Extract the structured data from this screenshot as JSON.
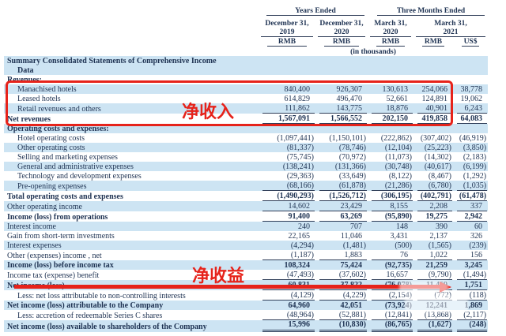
{
  "table": {
    "col_groups": [
      {
        "label": "Years Ended",
        "span": 2
      },
      {
        "label": "Three Months Ended",
        "span": 3
      }
    ],
    "col_dates": [
      "December 31, 2019",
      "December 31, 2020",
      "March 31, 2020",
      "March 31, 2021"
    ],
    "col_currencies": [
      "RMB",
      "RMB",
      "RMB",
      "RMB",
      "US$"
    ],
    "units_note": "(in thousands)",
    "rows": [
      {
        "label": "Summary Consolidated Statements of Comprehensive Income",
        "values": [
          "",
          "",
          "",
          "",
          ""
        ],
        "bold": true,
        "indent": 0,
        "shaded": true,
        "rule": null
      },
      {
        "label": "Data",
        "values": [
          "",
          "",
          "",
          "",
          ""
        ],
        "bold": true,
        "indent": 1,
        "shaded": true,
        "rule": null
      },
      {
        "label": "Revenues:",
        "values": [
          "",
          "",
          "",
          "",
          ""
        ],
        "bold": true,
        "indent": 0,
        "shaded": false,
        "rule": null
      },
      {
        "label": "Manachised hotels",
        "values": [
          "840,400",
          "926,307",
          "130,613",
          "254,066",
          "38,778"
        ],
        "bold": false,
        "indent": 1,
        "shaded": true,
        "rule": null
      },
      {
        "label": "Leased hotels",
        "values": [
          "614,829",
          "496,470",
          "52,661",
          "124,891",
          "19,062"
        ],
        "bold": false,
        "indent": 1,
        "shaded": false,
        "rule": null
      },
      {
        "label": "Retail revenues and others",
        "values": [
          "111,862",
          "143,775",
          "18,876",
          "40,901",
          "6,243"
        ],
        "bold": false,
        "indent": 1,
        "shaded": true,
        "rule": "single"
      },
      {
        "label": "Net revenues",
        "values": [
          "1,567,091",
          "1,566,552",
          "202,150",
          "419,858",
          "64,083"
        ],
        "bold": true,
        "indent": 0,
        "shaded": false,
        "rule": "single"
      },
      {
        "label": "Operating costs and expenses:",
        "values": [
          "",
          "",
          "",
          "",
          ""
        ],
        "bold": true,
        "indent": 0,
        "shaded": true,
        "rule": null
      },
      {
        "label": "Hotel operating costs",
        "values": [
          "(1,097,441)",
          "(1,150,101)",
          "(222,862)",
          "(307,402)",
          "(46,919)"
        ],
        "bold": false,
        "indent": 1,
        "shaded": false,
        "rule": null
      },
      {
        "label": "Other operating costs",
        "values": [
          "(81,337)",
          "(78,746)",
          "(12,104)",
          "(25,223)",
          "(3,850)"
        ],
        "bold": false,
        "indent": 1,
        "shaded": true,
        "rule": null
      },
      {
        "label": "Selling and marketing expenses",
        "values": [
          "(75,745)",
          "(70,972)",
          "(11,073)",
          "(14,302)",
          "(2,183)"
        ],
        "bold": false,
        "indent": 1,
        "shaded": false,
        "rule": null
      },
      {
        "label": "General and administrative expenses",
        "values": [
          "(138,241)",
          "(131,366)",
          "(30,748)",
          "(40,617)",
          "(6,199)"
        ],
        "bold": false,
        "indent": 1,
        "shaded": true,
        "rule": null
      },
      {
        "label": "Technology and development expenses",
        "values": [
          "(29,363)",
          "(33,649)",
          "(8,122)",
          "(8,467)",
          "(1,292)"
        ],
        "bold": false,
        "indent": 1,
        "shaded": false,
        "rule": null
      },
      {
        "label": "Pre-opening expenses",
        "values": [
          "(68,166)",
          "(61,878)",
          "(21,286)",
          "(6,780)",
          "(1,035)"
        ],
        "bold": false,
        "indent": 1,
        "shaded": true,
        "rule": "single"
      },
      {
        "label": "Total operating costs and expenses",
        "values": [
          "(1,490,293)",
          "(1,526,712)",
          "(306,195)",
          "(402,791)",
          "(61,478)"
        ],
        "bold": true,
        "indent": 0,
        "shaded": false,
        "rule": "single"
      },
      {
        "label": "Other operating income",
        "values": [
          "14,602",
          "23,429",
          "8,155",
          "2,208",
          "337"
        ],
        "bold": false,
        "indent": 0,
        "shaded": true,
        "rule": "single"
      },
      {
        "label": "Income (loss) from operations",
        "values": [
          "91,400",
          "63,269",
          "(95,890)",
          "19,275",
          "2,942"
        ],
        "bold": true,
        "indent": 0,
        "shaded": false,
        "rule": "single"
      },
      {
        "label": "Interest income",
        "values": [
          "240",
          "707",
          "148",
          "390",
          "60"
        ],
        "bold": false,
        "indent": 0,
        "shaded": true,
        "rule": null
      },
      {
        "label": "Gain from short-term investments",
        "values": [
          "22,165",
          "11,046",
          "3,431",
          "2,137",
          "326"
        ],
        "bold": false,
        "indent": 0,
        "shaded": false,
        "rule": null
      },
      {
        "label": "Interest expenses",
        "values": [
          "(4,294)",
          "(1,481)",
          "(500)",
          "(1,565)",
          "(239)"
        ],
        "bold": false,
        "indent": 0,
        "shaded": true,
        "rule": null
      },
      {
        "label": "Other (expenses) income , net",
        "values": [
          "(1,187)",
          "1,883",
          "76",
          "1,022",
          "156"
        ],
        "bold": false,
        "indent": 0,
        "shaded": false,
        "rule": "single"
      },
      {
        "label": "Income (loss) before income tax",
        "values": [
          "108,324",
          "75,424",
          "(92,735)",
          "21,259",
          "3,245"
        ],
        "bold": true,
        "indent": 0,
        "shaded": true,
        "rule": null
      },
      {
        "label": "Income tax (expense) benefit",
        "values": [
          "(47,493)",
          "(37,602)",
          "16,657",
          "(9,790)",
          "(1,494)"
        ],
        "bold": false,
        "indent": 0,
        "shaded": false,
        "rule": "single"
      },
      {
        "label": "Net income (loss)",
        "values": [
          "60,831",
          "37,822",
          "(76,078)",
          "11,469",
          "1,751"
        ],
        "bold": true,
        "indent": 0,
        "shaded": true,
        "rule": "single"
      },
      {
        "label": "Less: net loss attributable to non-controlling interests",
        "values": [
          "(4,129)",
          "(4,229)",
          "(2,154)",
          "(772)",
          "(118)"
        ],
        "bold": false,
        "indent": 1,
        "shaded": false,
        "rule": "single"
      },
      {
        "label": "Net income (loss) attributable to the Company",
        "values": [
          "64,960",
          "42,051",
          "(73,924)",
          "12,241",
          "1,869"
        ],
        "bold": true,
        "indent": 0,
        "shaded": true,
        "rule": null
      },
      {
        "label": "Less: accretion of redeemable Series C shares",
        "values": [
          "(48,964)",
          "(52,881)",
          "(12,841)",
          "(13,868)",
          "(2,117)"
        ],
        "bold": false,
        "indent": 1,
        "shaded": false,
        "rule": "single"
      },
      {
        "label": "Net income (loss) available to shareholders of the Company",
        "values": [
          "15,996",
          "(10,830)",
          "(86,765)",
          "(1,627)",
          "(248)"
        ],
        "bold": true,
        "indent": 0,
        "shaded": true,
        "rule": "double"
      }
    ]
  },
  "annotations": {
    "revenue_box_label": "净收入",
    "net_income_label": "净收益",
    "accent_red": "#e6231b"
  },
  "colors": {
    "row_shade": "#cde4f3",
    "text": "#1e3252",
    "rule": "#2e3d58"
  }
}
